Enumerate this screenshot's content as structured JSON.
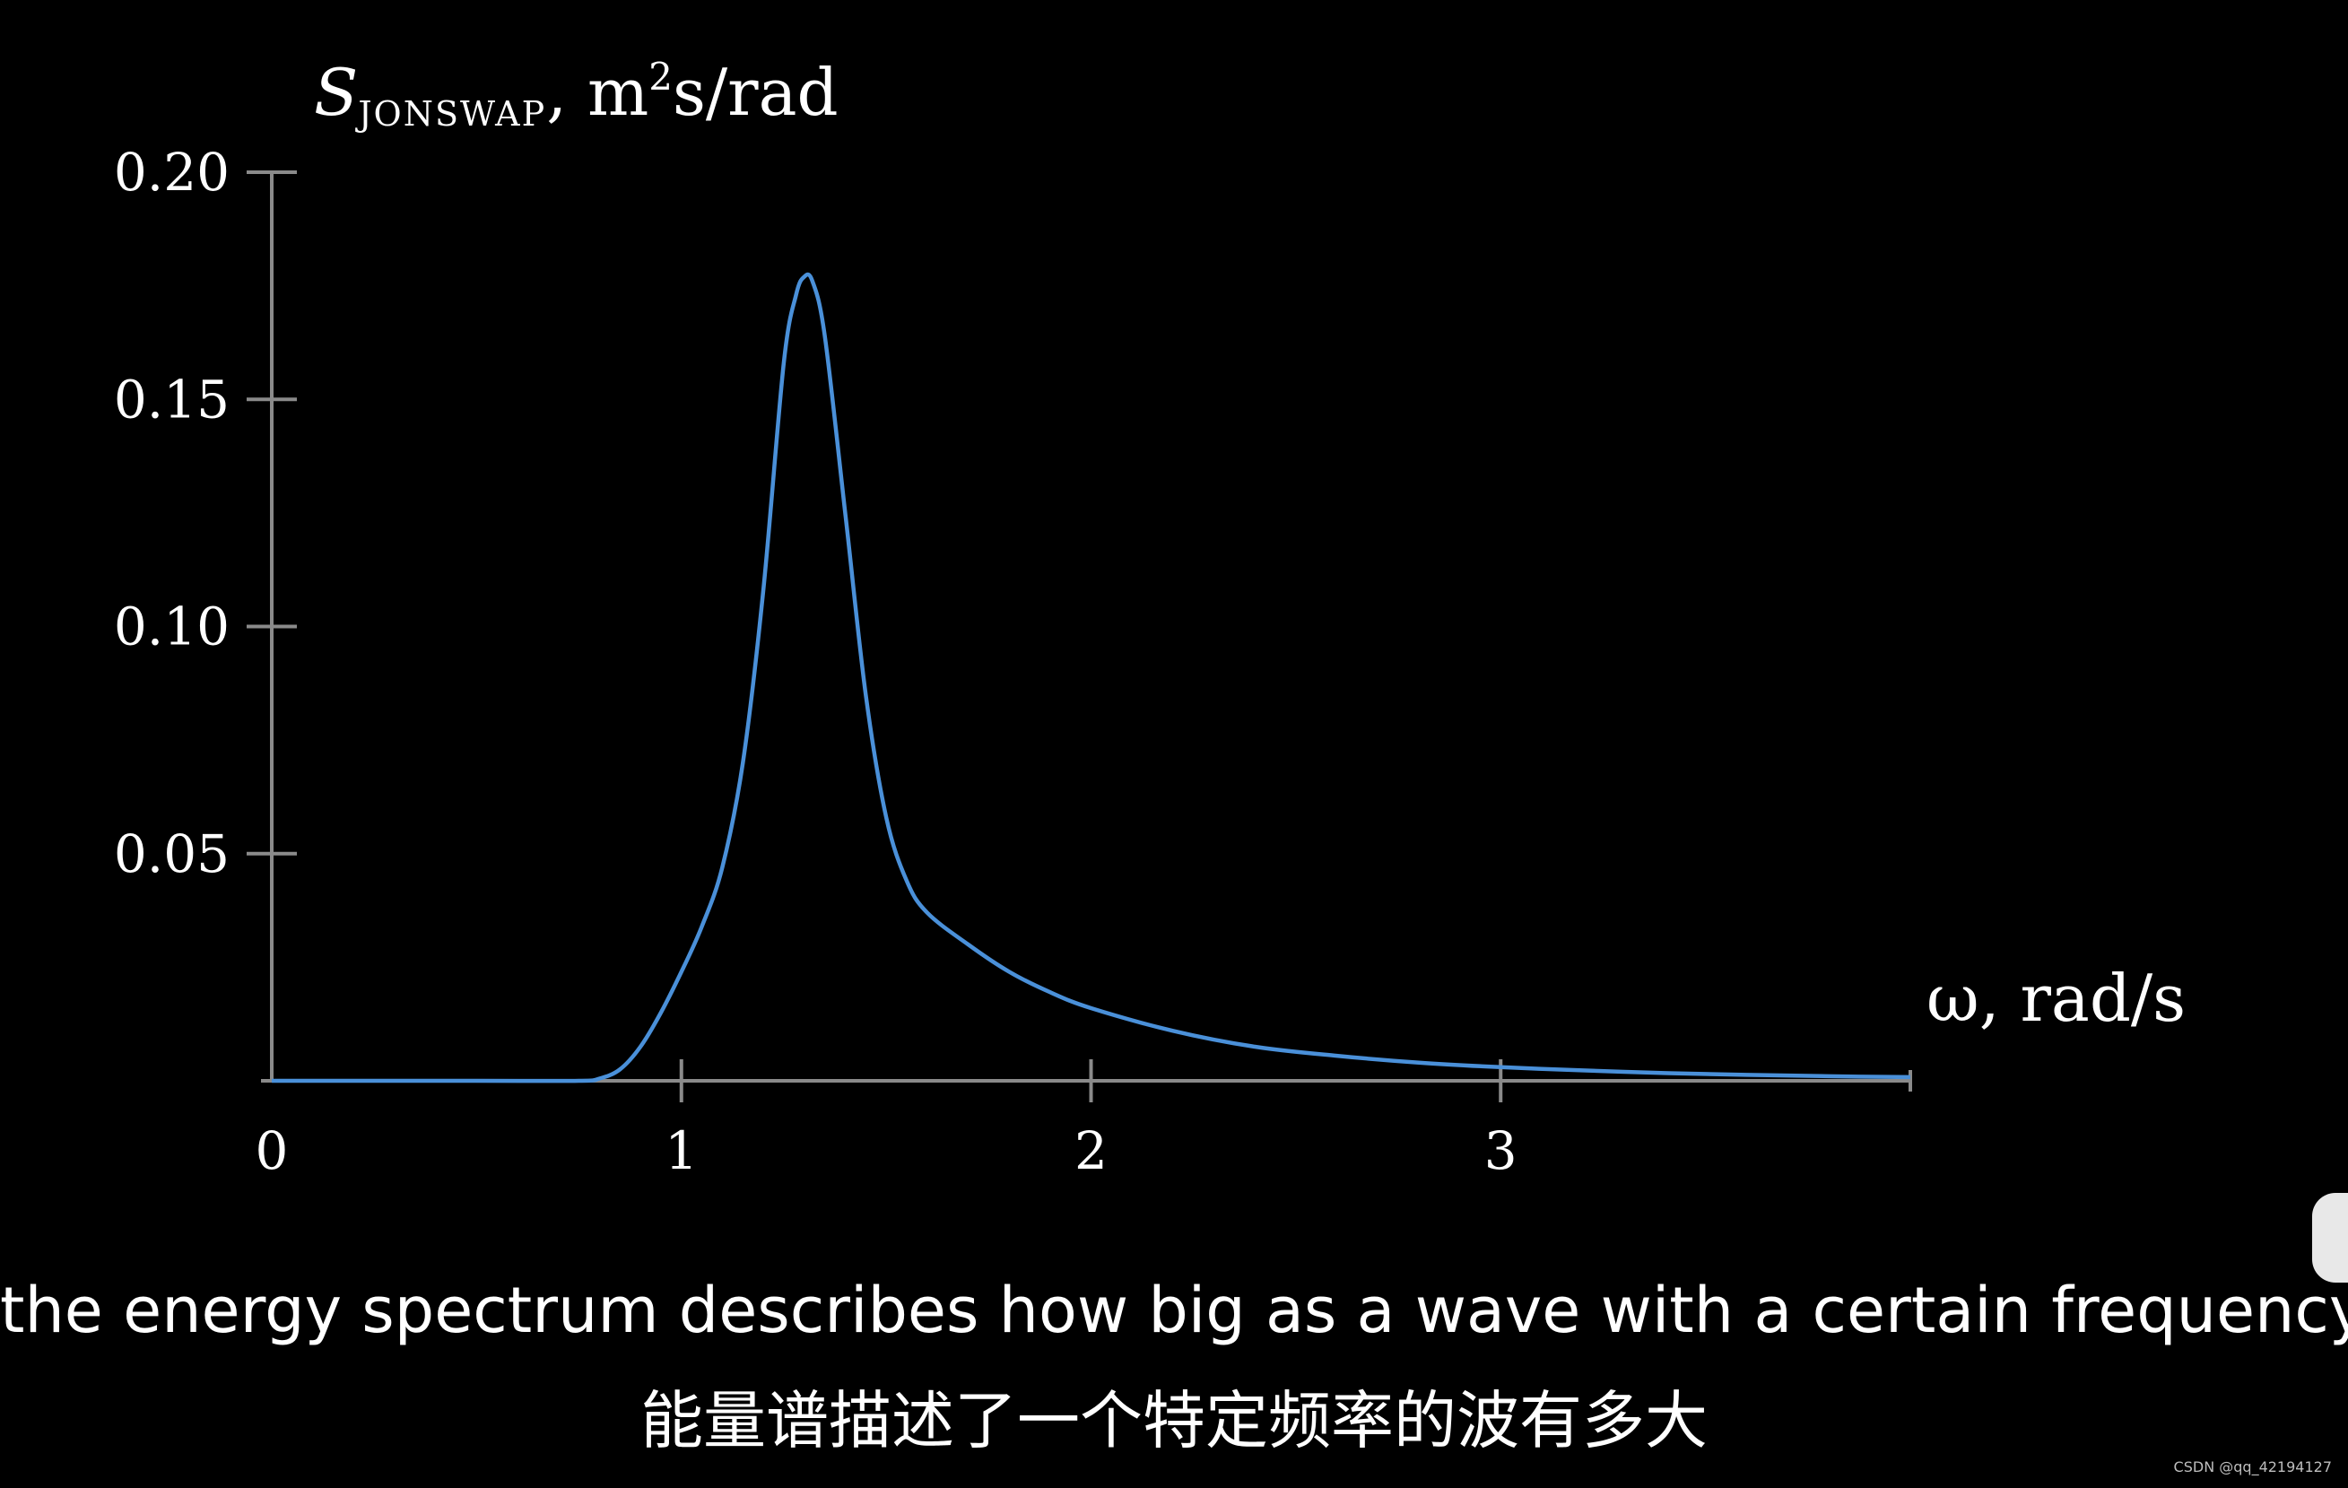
{
  "chart_data": {
    "type": "line",
    "ylabel": "S_JONSWAP, m²s/rad",
    "ylabel_main": "S",
    "ylabel_sub": "JONSWAP",
    "ylabel_unit_pre": ", m",
    "ylabel_unit_sup": "2",
    "ylabel_unit_post": "s/rad",
    "xlabel": "ω, rad/s",
    "xlim": [
      0,
      4
    ],
    "ylim": [
      0,
      0.2
    ],
    "x_ticks": [
      "0",
      "1",
      "2",
      "3"
    ],
    "y_ticks": [
      "0.20",
      "0.15",
      "0.10",
      "0.05"
    ],
    "grid": false,
    "legend": "none",
    "line_color": "#4a90d9",
    "axis_color": "#8a8a8a",
    "series": [
      {
        "x": [
          0,
          0.5,
          0.75,
          0.8,
          0.85,
          0.9,
          0.95,
          1.0,
          1.05,
          1.1,
          1.15,
          1.2,
          1.25,
          1.28,
          1.3,
          1.32,
          1.35,
          1.4,
          1.45,
          1.5,
          1.55,
          1.6,
          1.7,
          1.8,
          1.9,
          2.0,
          2.2,
          2.4,
          2.6,
          2.8,
          3.0,
          3.2,
          3.4,
          3.6,
          3.8,
          4.0
        ],
        "y": [
          0,
          0,
          0,
          0.0005,
          0.0025,
          0.0075,
          0.015,
          0.024,
          0.034,
          0.047,
          0.07,
          0.108,
          0.158,
          0.173,
          0.177,
          0.176,
          0.164,
          0.125,
          0.085,
          0.058,
          0.044,
          0.037,
          0.03,
          0.024,
          0.0195,
          0.016,
          0.011,
          0.0075,
          0.0055,
          0.004,
          0.003,
          0.0023,
          0.0017,
          0.0013,
          0.001,
          0.0008
        ]
      }
    ]
  },
  "subtitles": {
    "english": "the energy spectrum describes how big as a wave with a certain frequency",
    "chinese": "能量谱描述了一个特定频率的波有多大"
  },
  "watermark": "CSDN @qq_42194127"
}
